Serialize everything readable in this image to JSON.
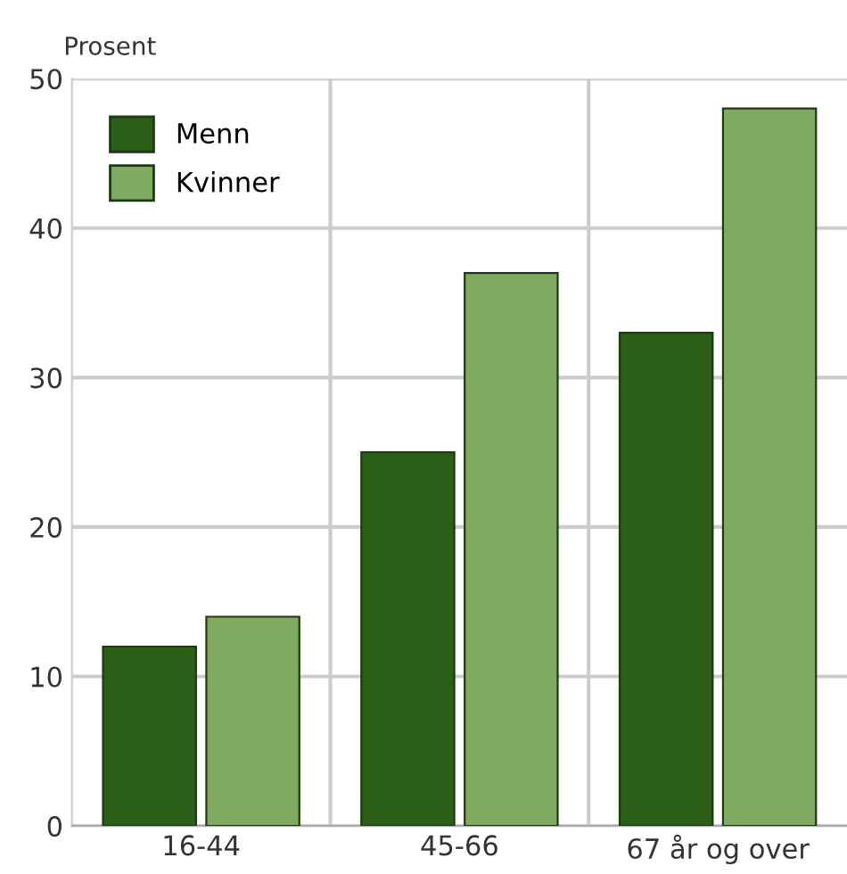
{
  "chart_data": {
    "type": "bar",
    "ylabel": "Prosent",
    "categories": [
      "16-44",
      "45-66",
      "67 år og over"
    ],
    "series": [
      {
        "name": "Menn",
        "color": "#2b5e16",
        "values": [
          12,
          25,
          33
        ]
      },
      {
        "name": "Kvinner",
        "color": "#80aa60",
        "values": [
          14,
          37,
          48
        ]
      }
    ],
    "ylim": [
      0,
      50
    ],
    "yticks": [
      0,
      10,
      20,
      30,
      40,
      50
    ],
    "grid": true,
    "legend": "top left"
  }
}
